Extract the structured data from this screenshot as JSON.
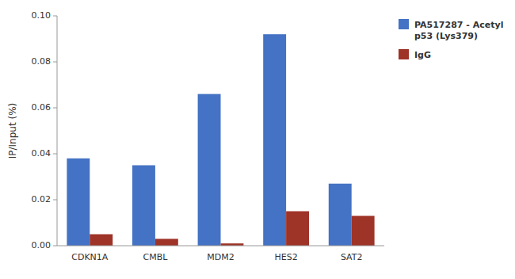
{
  "chart_data": {
    "type": "bar",
    "categories": [
      "CDKN1A",
      "CMBL",
      "MDM2",
      "HES2",
      "SAT2"
    ],
    "series": [
      {
        "name": "PA517287 - Acetyl\np53 (Lys379)",
        "color": "#4472C4",
        "values": [
          0.038,
          0.035,
          0.066,
          0.092,
          0.027
        ]
      },
      {
        "name": "IgG",
        "color": "#9E3328",
        "values": [
          0.005,
          0.003,
          0.001,
          0.015,
          0.013
        ]
      }
    ],
    "ylabel": "IP/Input (%)",
    "ylim": [
      0,
      0.1
    ],
    "yticks": [
      {
        "value": 0,
        "label": "0.00"
      },
      0.02,
      0.04,
      0.06,
      0.08,
      {
        "value": 0.1,
        "label": "0.10"
      }
    ],
    "legend": "upper right",
    "grid": false
  }
}
